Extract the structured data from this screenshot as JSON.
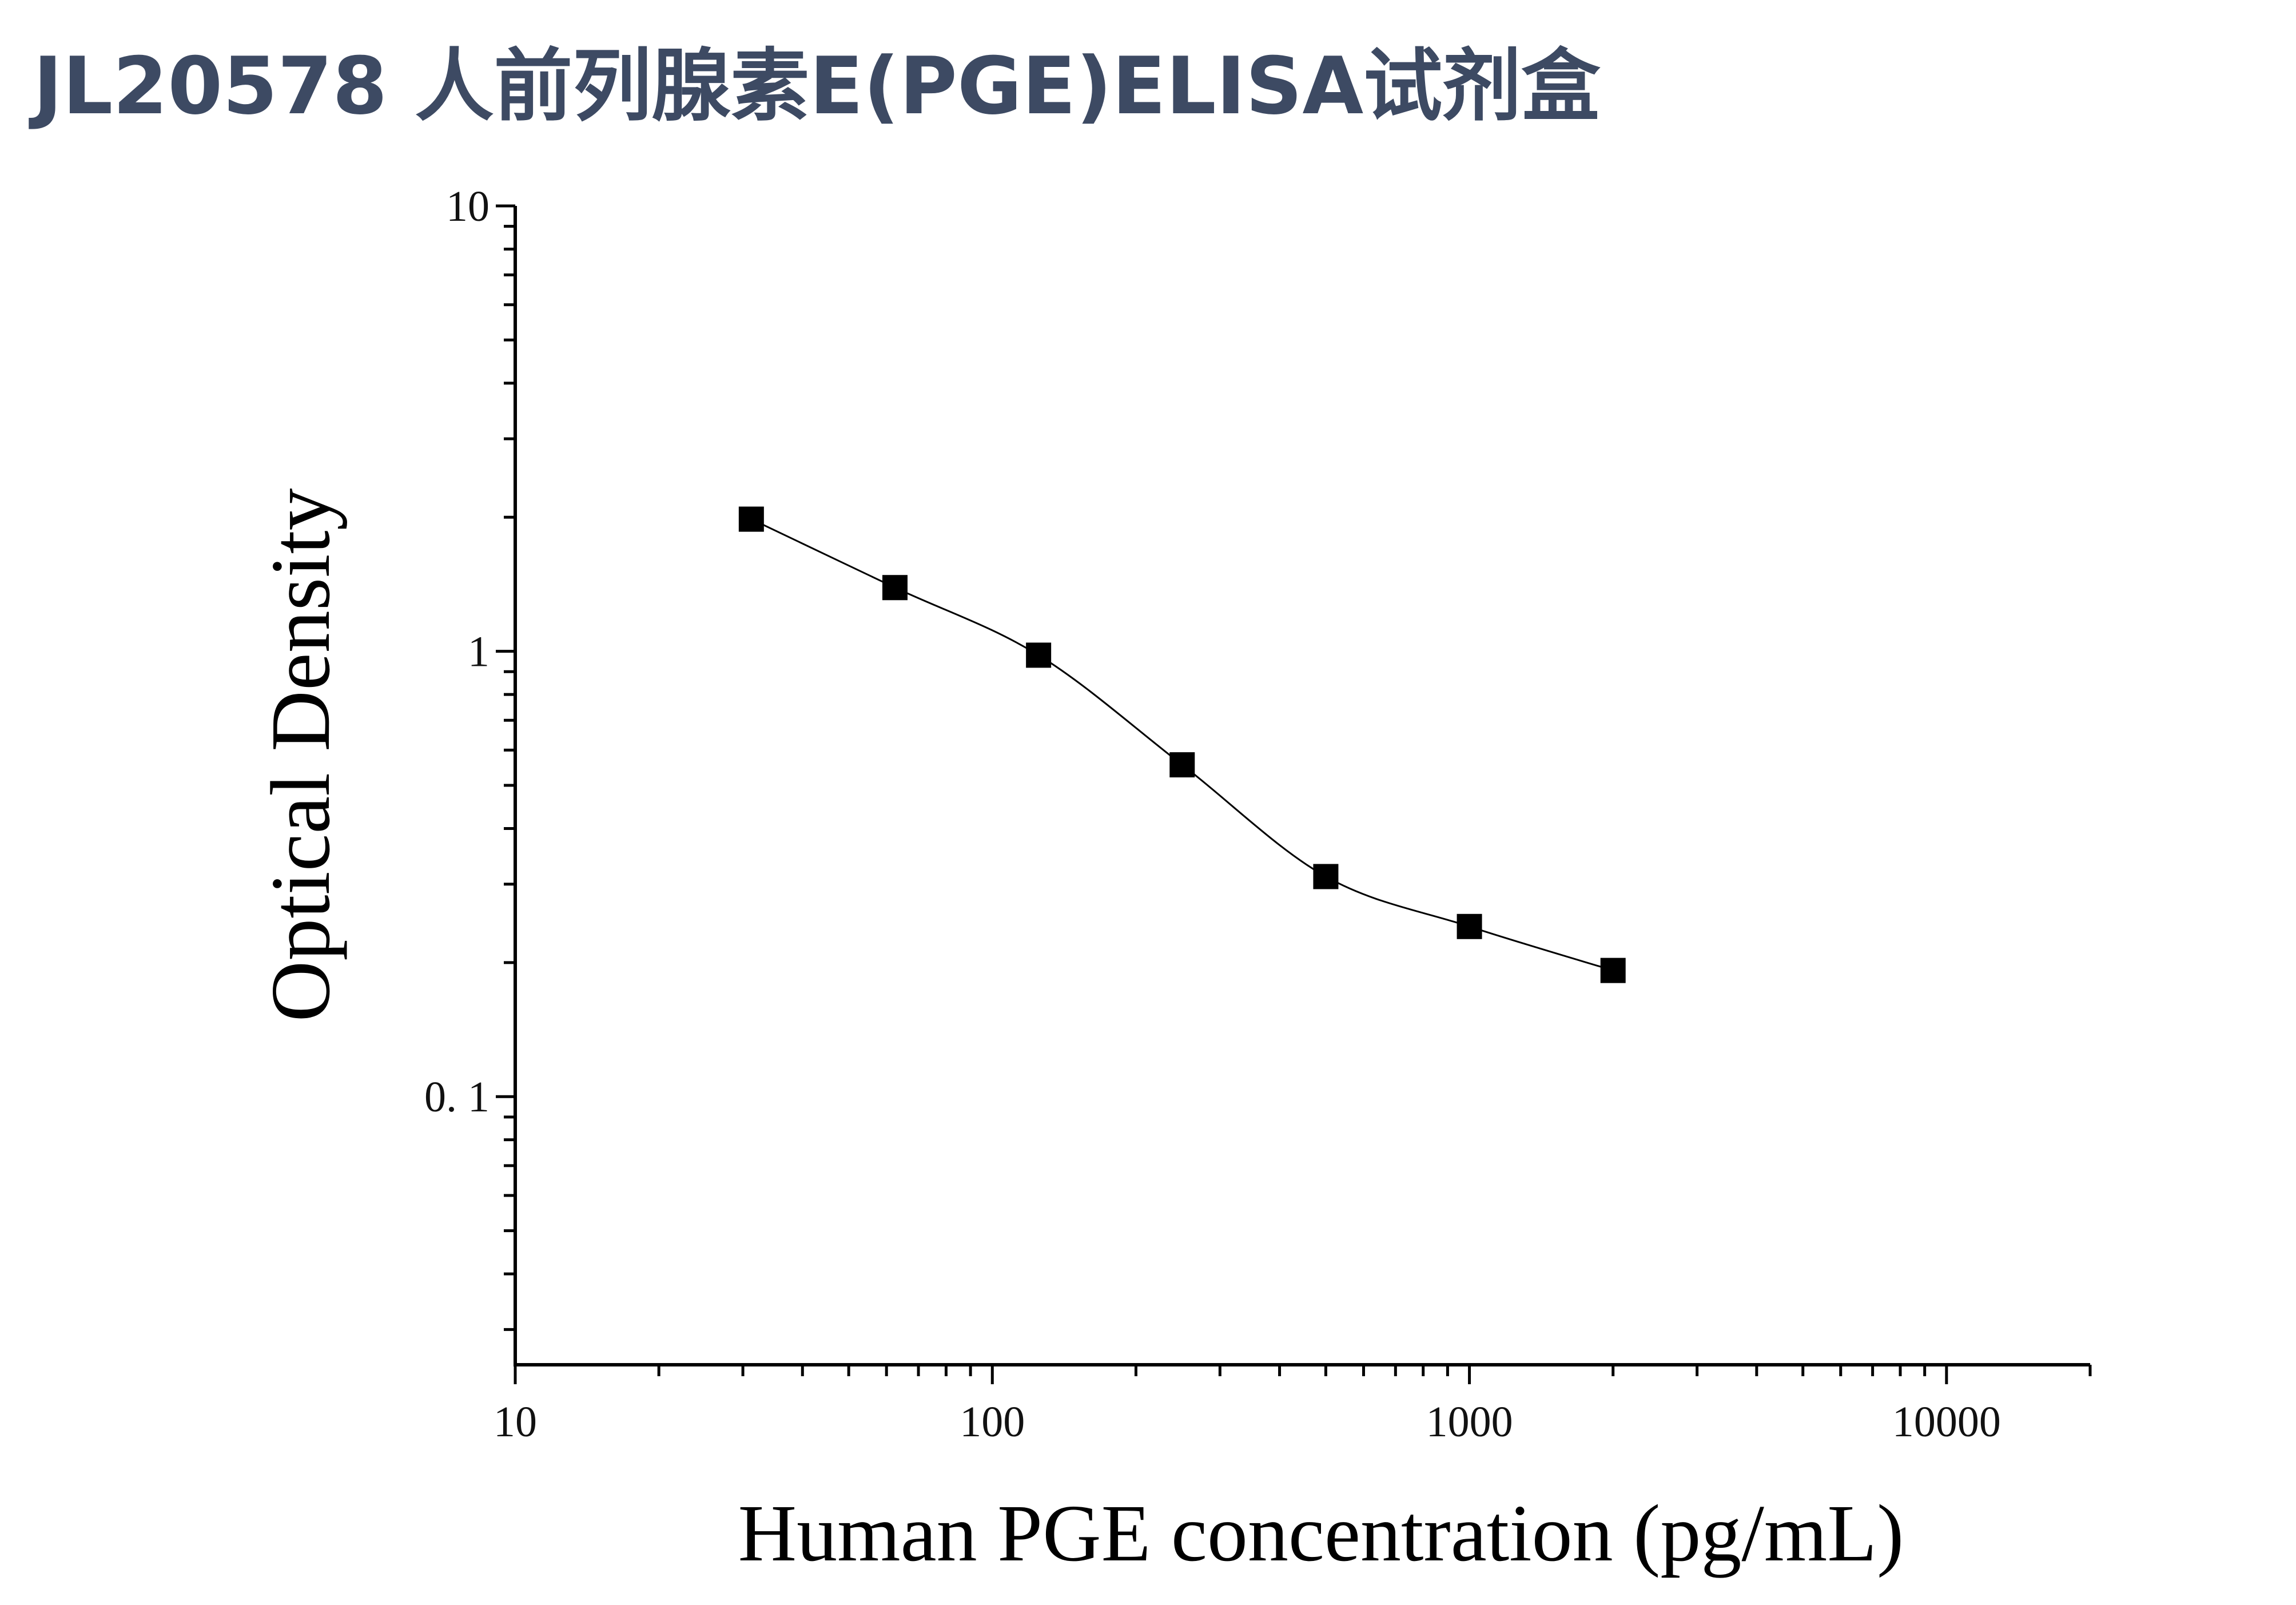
{
  "title": "JL20578 人前列腺素E(PGE)ELISA试剂盒",
  "chart_data": {
    "type": "scatter",
    "title": "JL20578 人前列腺素E(PGE)ELISA试剂盒",
    "xlabel": "Human PGE concentration (pg/mL)",
    "ylabel": "Optical Density",
    "x_scale": "log",
    "y_scale": "log",
    "xlim": [
      10,
      20000
    ],
    "ylim": [
      0.025,
      10
    ],
    "x_ticks": [
      {
        "value": 10,
        "label": "10"
      },
      {
        "value": 100,
        "label": "100"
      },
      {
        "value": 1000,
        "label": "1000"
      },
      {
        "value": 10000,
        "label": "10000"
      }
    ],
    "y_ticks": [
      {
        "value": 0.1,
        "label": "0. 1"
      },
      {
        "value": 1,
        "label": "1"
      },
      {
        "value": 10,
        "label": "10"
      }
    ],
    "grid": false,
    "marker": "square",
    "fit_line": true,
    "color": "#000000",
    "x": [
      31.25,
      62.5,
      125,
      250,
      500,
      1000,
      2000
    ],
    "y": [
      1.98,
      1.39,
      0.98,
      0.556,
      0.312,
      0.241,
      0.192
    ]
  }
}
